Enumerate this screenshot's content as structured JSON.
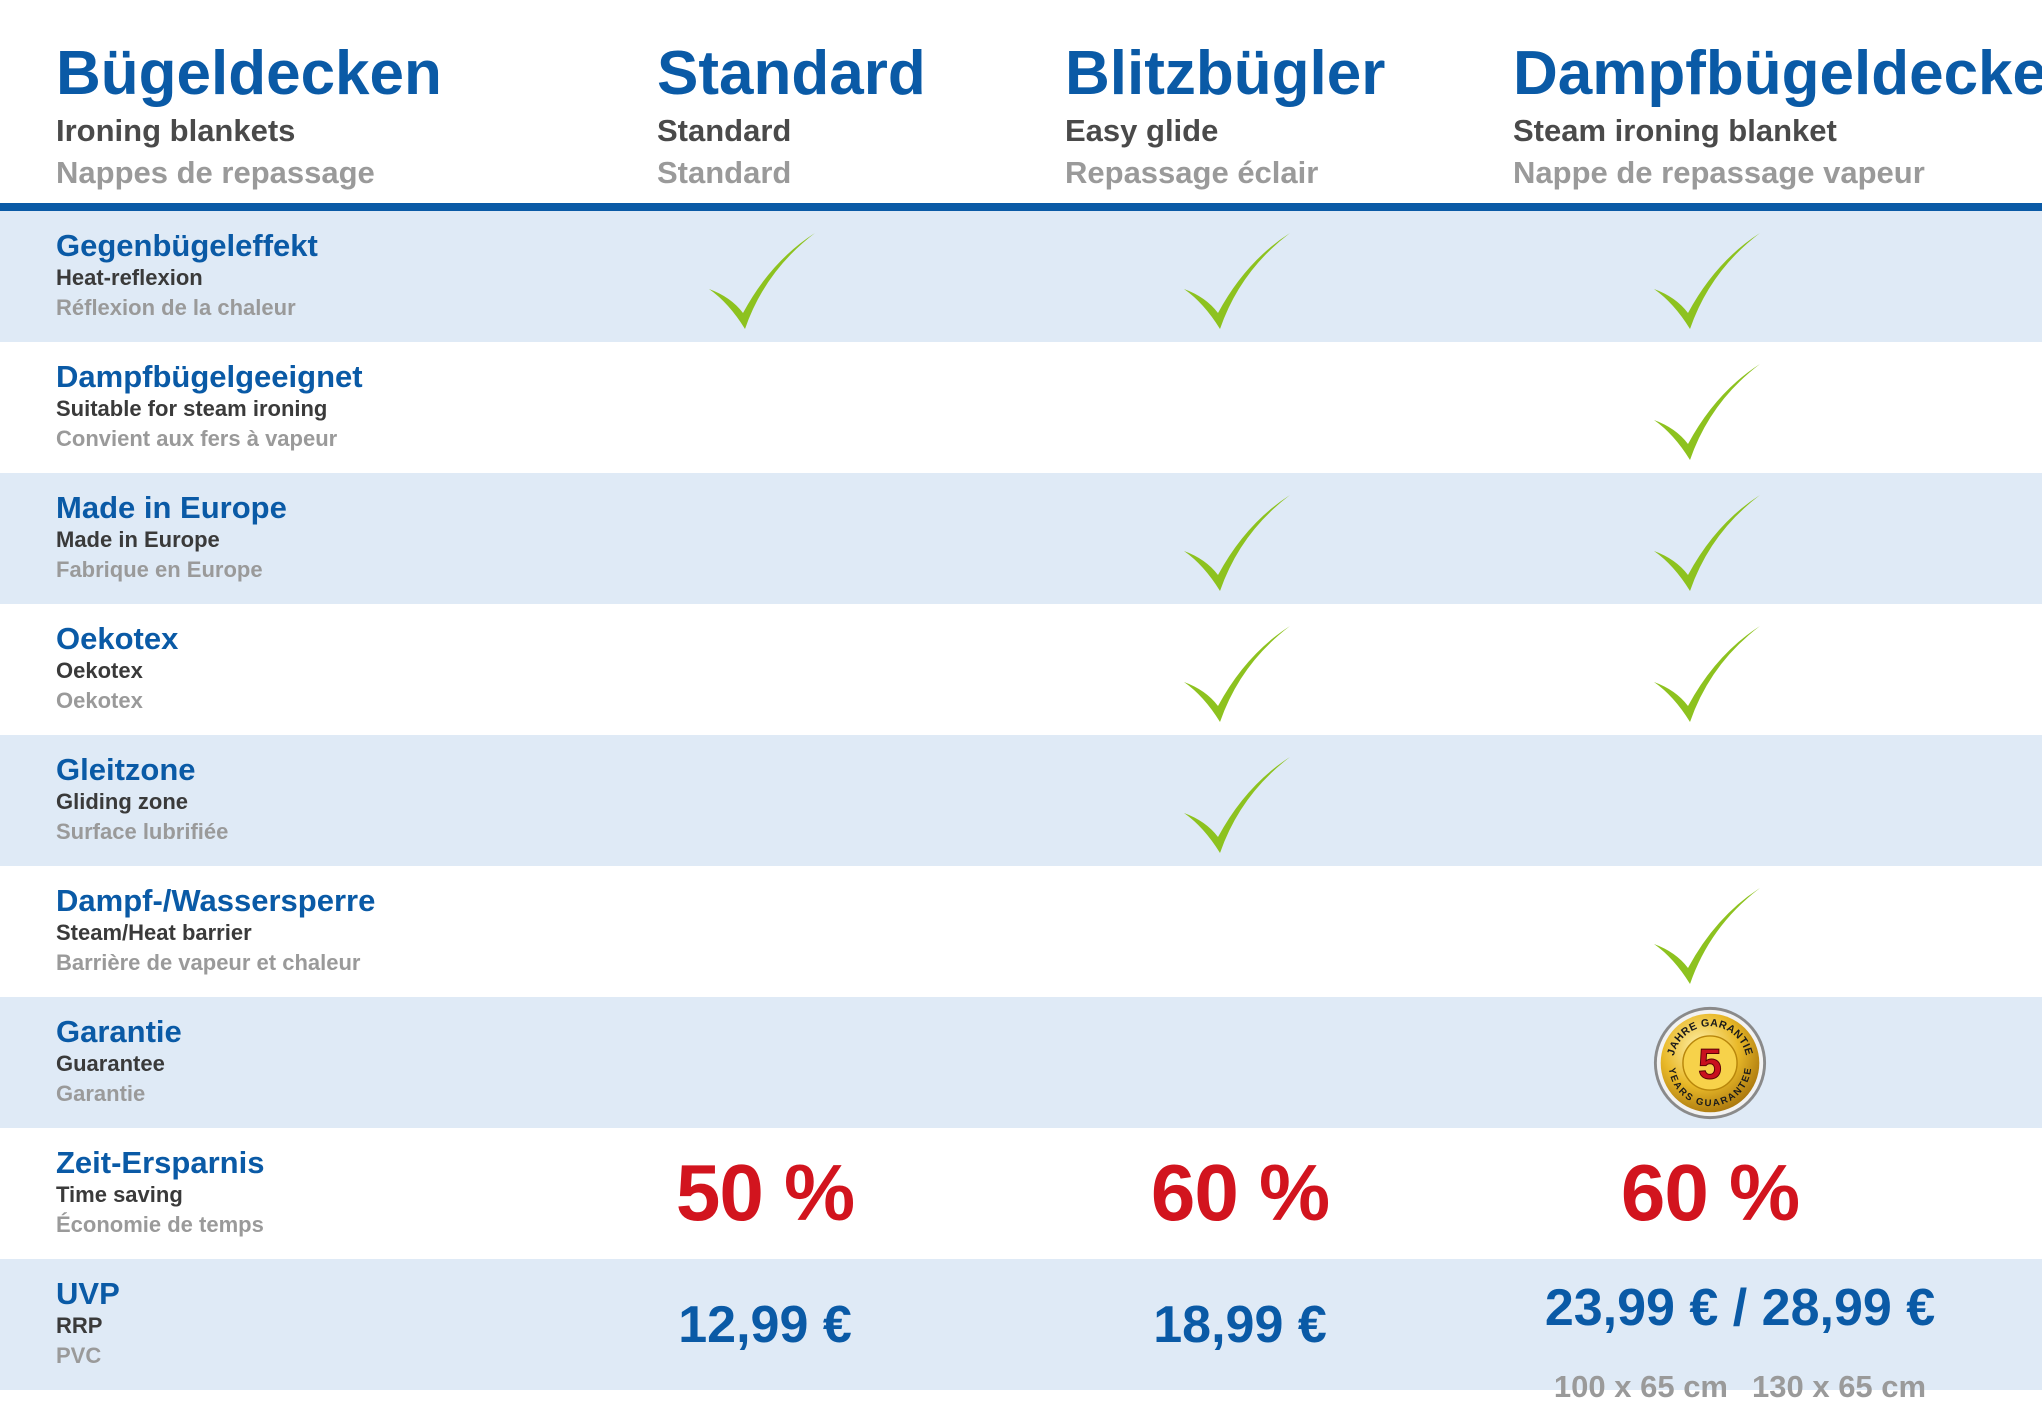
{
  "header": {
    "title_de": "Bügeldecken",
    "title_en": "Ironing blankets",
    "title_fr": "Nappes de repassage",
    "products": [
      {
        "de": "Standard",
        "en": "Standard",
        "fr": "Standard"
      },
      {
        "de": "Blitzbügler",
        "en": "Easy glide",
        "fr": "Repassage éclair"
      },
      {
        "de": "Dampfbügeldecke",
        "en": "Steam ironing blanket",
        "fr": "Nappe de repassage vapeur"
      }
    ]
  },
  "rows": [
    {
      "de": "Gegenbügeleffekt",
      "en": "Heat-reflexion",
      "fr": "Réflexion de la chaleur",
      "checks": [
        true,
        true,
        true
      ]
    },
    {
      "de": "Dampfbügelgeeignet",
      "en": "Suitable for steam ironing",
      "fr": "Convient aux fers à vapeur",
      "checks": [
        false,
        false,
        true
      ]
    },
    {
      "de": "Made in Europe",
      "en": "Made in Europe",
      "fr": "Fabrique en Europe",
      "checks": [
        false,
        true,
        true
      ]
    },
    {
      "de": "Oekotex",
      "en": "Oekotex",
      "fr": "Oekotex",
      "checks": [
        false,
        true,
        true
      ]
    },
    {
      "de": "Gleitzone",
      "en": "Gliding zone",
      "fr": "Surface lubrifiée",
      "checks": [
        false,
        true,
        false
      ]
    },
    {
      "de": "Dampf-/Wassersperre",
      "en": "Steam/Heat barrier",
      "fr": "Barrière de vapeur et chaleur",
      "checks": [
        false,
        false,
        true
      ]
    },
    {
      "de": "Garantie",
      "en": "Guarantee",
      "fr": "Garantie",
      "seal": {
        "number": "5",
        "text_top": "JAHRE GARANTIE",
        "text_bottom": "YEARS GUARANTEE"
      }
    },
    {
      "de": "Zeit-Ersparnis",
      "en": "Time saving",
      "fr": "Économie de temps",
      "values": [
        "50 %",
        "60 %",
        "60 %"
      ]
    },
    {
      "de": "UVP",
      "en": "RRP",
      "fr": "PVC",
      "prices": [
        "12,99 €",
        "18,99 €",
        "23,99 € / 28,99 €"
      ],
      "sizes": [
        "100 x 65 cm",
        "130 x 65 cm"
      ]
    }
  ],
  "colors": {
    "brand_blue": "#0a5aa6",
    "row_tint": "#dfeaf6",
    "check_green": "#8dc21f",
    "percent_red": "#d2141e",
    "seal_gold": "#e9b929"
  },
  "icons": {
    "check": "check-icon",
    "seal": "guarantee-seal-icon"
  }
}
